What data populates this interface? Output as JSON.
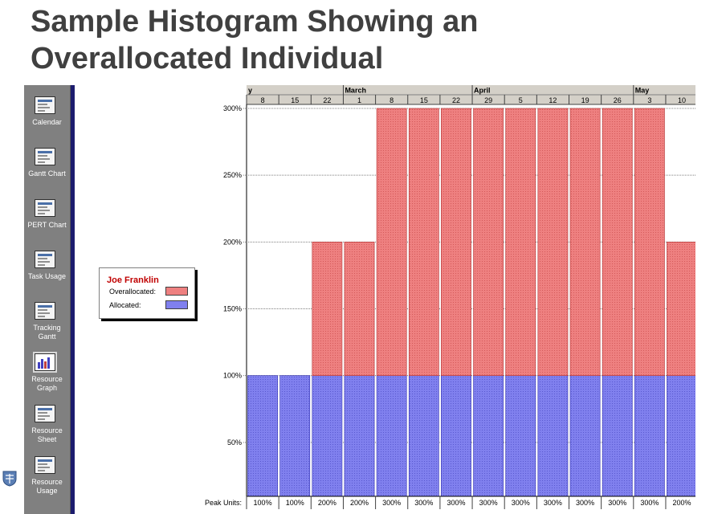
{
  "slide": {
    "title_line1": "Sample Histogram Showing an",
    "title_line2": "Overallocated Individual"
  },
  "viewbar": {
    "items": [
      {
        "label": "Calendar",
        "icon": "calendar-icon"
      },
      {
        "label": "Gantt Chart",
        "icon": "gantt-chart-icon"
      },
      {
        "label": "PERT Chart",
        "icon": "pert-chart-icon"
      },
      {
        "label": "Task Usage",
        "icon": "task-usage-icon"
      },
      {
        "label": "Tracking Gantt",
        "icon": "tracking-gantt-icon"
      },
      {
        "label": "Resource Graph",
        "icon": "resource-graph-icon",
        "active": true
      },
      {
        "label": "Resource Sheet",
        "icon": "resource-sheet-icon"
      },
      {
        "label": "Resource Usage",
        "icon": "resource-usage-icon"
      }
    ]
  },
  "legend": {
    "resource_name": "Joe Franklin",
    "overallocated_label": "Overallocated:",
    "allocated_label": "Allocated:"
  },
  "chart_data": {
    "type": "bar",
    "months": [
      {
        "label": "y",
        "start_index": 0
      },
      {
        "label": "March",
        "start_index": 3
      },
      {
        "label": "April",
        "start_index": 7
      },
      {
        "label": "May",
        "start_index": 12
      }
    ],
    "categories": [
      "8",
      "15",
      "22",
      "1",
      "8",
      "15",
      "22",
      "29",
      "5",
      "12",
      "19",
      "26",
      "3",
      "10"
    ],
    "series": [
      {
        "name": "Allocated",
        "values": [
          100,
          100,
          100,
          100,
          100,
          100,
          100,
          100,
          100,
          100,
          100,
          100,
          100,
          100
        ],
        "color": "#8080ee"
      },
      {
        "name": "Overallocated",
        "values": [
          0,
          0,
          100,
          100,
          200,
          200,
          200,
          200,
          200,
          200,
          200,
          200,
          200,
          100
        ],
        "color": "#ee8080"
      }
    ],
    "peak_units_label": "Peak Units:",
    "peak_units": [
      "100%",
      "100%",
      "200%",
      "200%",
      "300%",
      "300%",
      "300%",
      "300%",
      "300%",
      "300%",
      "300%",
      "300%",
      "300%",
      "200%"
    ],
    "y_ticks": [
      "50%",
      "100%",
      "150%",
      "200%",
      "250%",
      "300%"
    ],
    "y_tick_values": [
      50,
      100,
      150,
      200,
      250,
      300
    ],
    "ylim": [
      0,
      300
    ],
    "grid": true
  },
  "colors": {
    "overallocated": "#ee8080",
    "allocated": "#8080ee",
    "viewbar": "#808080",
    "title": "#404040"
  }
}
